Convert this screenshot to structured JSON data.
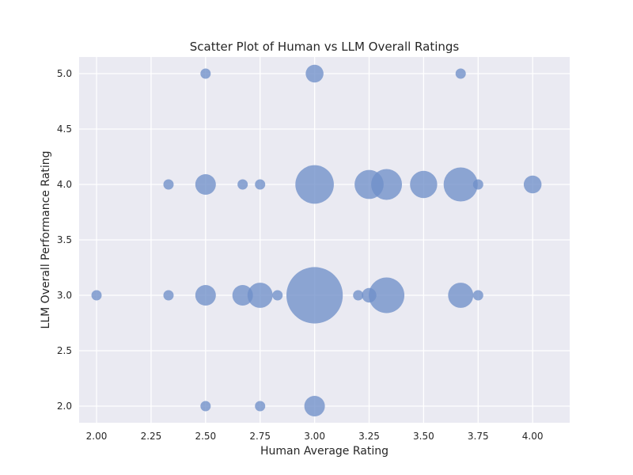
{
  "chart_data": {
    "type": "scatter",
    "title": "Scatter Plot of Human vs LLM Overall Ratings",
    "xlabel": "Human Average Rating",
    "ylabel": "LLM Overall Performance Rating",
    "xlim": [
      1.92,
      4.17
    ],
    "ylim": [
      1.85,
      5.15
    ],
    "xticks": [
      "2.00",
      "2.25",
      "2.50",
      "2.75",
      "3.00",
      "3.25",
      "3.50",
      "3.75",
      "4.00"
    ],
    "yticks": [
      "2.0",
      "2.5",
      "3.0",
      "3.5",
      "4.0",
      "4.5",
      "5.0"
    ],
    "grid": true,
    "marker_color": "#6F8FC9",
    "background_color": "#EAEAF2",
    "grid_color": "#FFFFFF",
    "size_encoding": "count",
    "points": [
      {
        "x": 2.5,
        "y": 5.0,
        "count": 1
      },
      {
        "x": 3.0,
        "y": 5.0,
        "count": 3
      },
      {
        "x": 3.67,
        "y": 5.0,
        "count": 1
      },
      {
        "x": 2.33,
        "y": 4.0,
        "count": 1
      },
      {
        "x": 2.5,
        "y": 4.0,
        "count": 4
      },
      {
        "x": 2.67,
        "y": 4.0,
        "count": 1
      },
      {
        "x": 2.75,
        "y": 4.0,
        "count": 1
      },
      {
        "x": 3.0,
        "y": 4.0,
        "count": 14
      },
      {
        "x": 3.25,
        "y": 4.0,
        "count": 8
      },
      {
        "x": 3.33,
        "y": 4.0,
        "count": 9
      },
      {
        "x": 3.5,
        "y": 4.0,
        "count": 7
      },
      {
        "x": 3.67,
        "y": 4.0,
        "count": 11
      },
      {
        "x": 3.75,
        "y": 4.0,
        "count": 1
      },
      {
        "x": 4.0,
        "y": 4.0,
        "count": 3
      },
      {
        "x": 2.0,
        "y": 3.0,
        "count": 1
      },
      {
        "x": 2.33,
        "y": 3.0,
        "count": 1
      },
      {
        "x": 2.5,
        "y": 3.0,
        "count": 4
      },
      {
        "x": 2.67,
        "y": 3.0,
        "count": 4
      },
      {
        "x": 2.75,
        "y": 3.0,
        "count": 6
      },
      {
        "x": 2.83,
        "y": 3.0,
        "count": 1
      },
      {
        "x": 3.0,
        "y": 3.0,
        "count": 30
      },
      {
        "x": 3.2,
        "y": 3.0,
        "count": 1
      },
      {
        "x": 3.25,
        "y": 3.0,
        "count": 2
      },
      {
        "x": 3.33,
        "y": 3.0,
        "count": 12
      },
      {
        "x": 3.67,
        "y": 3.0,
        "count": 6
      },
      {
        "x": 3.75,
        "y": 3.0,
        "count": 1
      },
      {
        "x": 2.5,
        "y": 2.0,
        "count": 1
      },
      {
        "x": 2.75,
        "y": 2.0,
        "count": 1
      },
      {
        "x": 3.0,
        "y": 2.0,
        "count": 4
      }
    ]
  }
}
